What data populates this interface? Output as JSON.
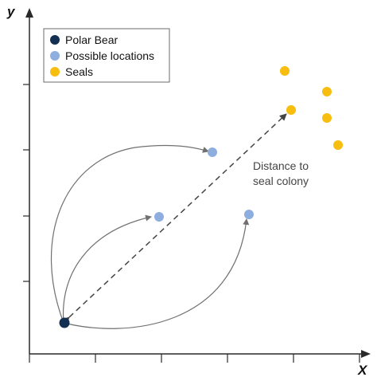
{
  "axes": {
    "x_label": "X",
    "y_label": "y"
  },
  "legend": {
    "items": [
      {
        "key": "polar-bear",
        "label": "Polar Bear",
        "color": "#132f52"
      },
      {
        "key": "possible-locations",
        "label": "Possible locations",
        "color": "#8eaee0"
      },
      {
        "key": "seals",
        "label": "Seals",
        "color": "#f7bd0f"
      }
    ]
  },
  "annotation": {
    "line1": "Distance to",
    "line2": "seal colony"
  },
  "colors": {
    "axis": "#2a2a2a",
    "arrow": "#707070",
    "dashed": "#444444"
  }
}
